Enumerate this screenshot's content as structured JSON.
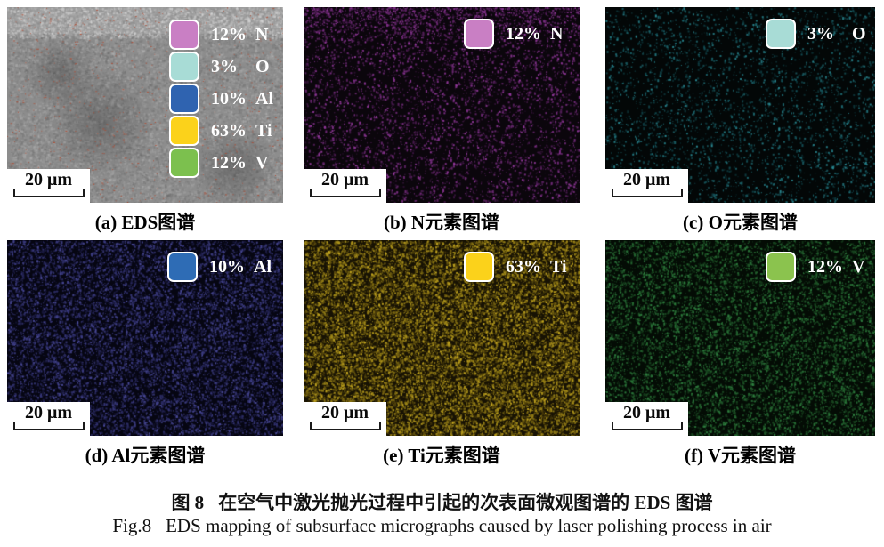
{
  "figure": {
    "panels": [
      {
        "id": "a",
        "caption": "(a) EDS图谱",
        "scale_bar": "20 μm",
        "legend": [
          {
            "pct": "12%",
            "element": "N",
            "color": "#c97fc4"
          },
          {
            "pct": "3%",
            "element": "O",
            "color": "#a8dcd6"
          },
          {
            "pct": "10%",
            "element": "Al",
            "color": "#2f63b0"
          },
          {
            "pct": "63%",
            "element": "Ti",
            "color": "#fbd21b"
          },
          {
            "pct": "12%",
            "element": "V",
            "color": "#7cc04e"
          }
        ]
      },
      {
        "id": "b",
        "caption": "(b) N元素图谱",
        "scale_bar": "20 μm",
        "legend": [
          {
            "pct": "12%",
            "element": "N",
            "color": "#c97fc4"
          }
        ]
      },
      {
        "id": "c",
        "caption": "(c) O元素图谱",
        "scale_bar": "20 μm",
        "legend": [
          {
            "pct": "3%",
            "element": "O",
            "color": "#a8dcd6"
          }
        ]
      },
      {
        "id": "d",
        "caption": "(d) Al元素图谱",
        "scale_bar": "20 μm",
        "legend": [
          {
            "pct": "10%",
            "element": "Al",
            "color": "#2e6cb5"
          }
        ]
      },
      {
        "id": "e",
        "caption": "(e) Ti元素图谱",
        "scale_bar": "20 μm",
        "legend": [
          {
            "pct": "63%",
            "element": "Ti",
            "color": "#fbd21b"
          }
        ]
      },
      {
        "id": "f",
        "caption": "(f) V元素图谱",
        "scale_bar": "20 μm",
        "legend": [
          {
            "pct": "12%",
            "element": "V",
            "color": "#8bc34e"
          }
        ]
      }
    ],
    "map_colors": {
      "sem_base_gray": "#8d8d8d",
      "sem_red_dots": "#b1492f",
      "n_dots": "#7d2f86",
      "o_dots": "#2a8a94",
      "al_dots": "#4a4a99",
      "ti_dots": "#b59a1e",
      "v_dots": "#2f8040"
    },
    "caption_zh_label": "图 8",
    "caption_zh_text": "在空气中激光抛光过程中引起的次表面微观图谱的 EDS 图谱",
    "caption_en_label": "Fig.8",
    "caption_en_text": "EDS mapping of subsurface micrographs caused by laser polishing process in air"
  }
}
